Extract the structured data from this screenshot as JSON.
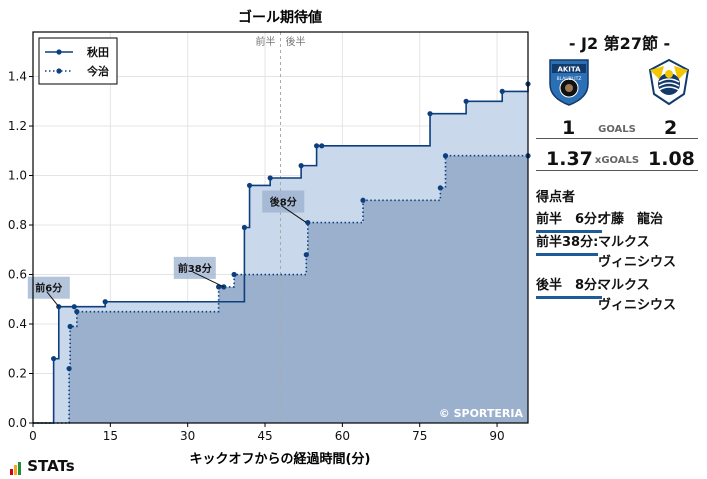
{
  "chart_data": {
    "type": "line",
    "title": "ゴール期待値",
    "xlabel": "キックオフからの経過時間(分)",
    "ylabel": "",
    "xlim": [
      0,
      96
    ],
    "ylim": [
      0,
      1.58
    ],
    "xticks": [
      0,
      15,
      30,
      45,
      60,
      75,
      90
    ],
    "yticks": [
      0.0,
      0.2,
      0.4,
      0.6,
      0.8,
      1.0,
      1.2,
      1.4
    ],
    "halftime_x": 48,
    "halftime_labels": [
      "前半",
      "後半"
    ],
    "legend_position": "top-left",
    "watermark": "© SPORTERIA",
    "series": [
      {
        "name": "秋田",
        "style": "solid",
        "color": "#0d3f7f",
        "fill": "#c9d8ea",
        "x": [
          0,
          4,
          5,
          8,
          14,
          41,
          42,
          46,
          52,
          55,
          56,
          77,
          84,
          91,
          96
        ],
        "y": [
          0,
          0.26,
          0.47,
          0.47,
          0.49,
          0.79,
          0.96,
          0.99,
          1.04,
          1.12,
          1.12,
          1.25,
          1.3,
          1.34,
          1.37
        ]
      },
      {
        "name": "今治",
        "style": "dotted",
        "color": "#0d3f7f",
        "fill": "#9bb0cd",
        "x": [
          0,
          7,
          7.2,
          8.5,
          36,
          37,
          39,
          53,
          53.3,
          64,
          79,
          80,
          96
        ],
        "y": [
          0,
          0.22,
          0.39,
          0.45,
          0.55,
          0.55,
          0.6,
          0.68,
          0.81,
          0.9,
          0.95,
          1.08,
          1.08
        ]
      }
    ],
    "annotations": [
      {
        "label": "前6分",
        "x": 5,
        "y": 0.47
      },
      {
        "label": "前38分",
        "x": 37,
        "y": 0.55
      },
      {
        "label": "後8分",
        "x": 53,
        "y": 0.81
      }
    ]
  },
  "side": {
    "match": "- J2 第27節 -",
    "home_crest_text": "AKITA",
    "home_crest_sub": "BLAUBLITZ",
    "home_goals": "1",
    "away_goals": "2",
    "goals_label": "GOALS",
    "home_xg": "1.37",
    "away_xg": "1.08",
    "xg_label": "xGOALS",
    "scorers_title": "得点者",
    "scorers": [
      {
        "when": "前半　6分:",
        "who": "才藤　龍治"
      },
      {
        "when": "前半38分:",
        "who": "マルクス\nヴィニシウス"
      },
      {
        "when": "後半　8分:",
        "who": "マルクス\nヴィニシウス"
      }
    ],
    "colors": {
      "home": "#1f5a99",
      "away": "#f2c600"
    }
  },
  "branding": {
    "logo": "STATs"
  }
}
